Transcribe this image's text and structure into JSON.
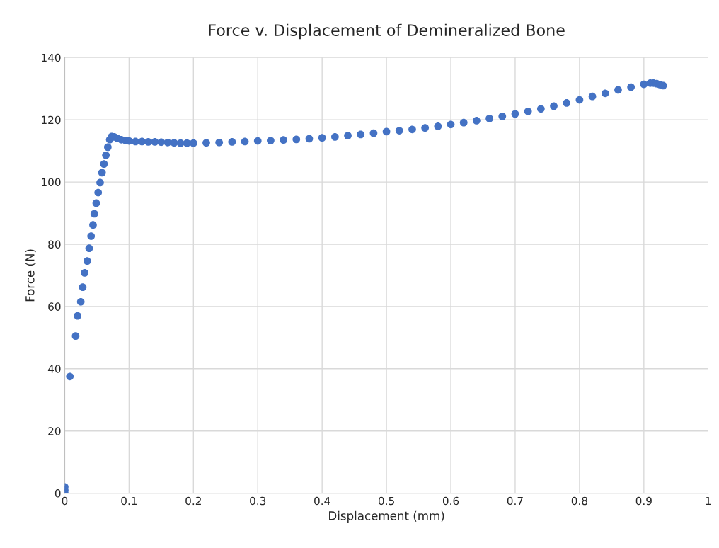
{
  "chart_data": {
    "type": "scatter",
    "title": "Force v. Displacement of Demineralized Bone",
    "xlabel": "Displacement (mm)",
    "ylabel": "Force (N)",
    "xlim": [
      0,
      1
    ],
    "xticks": [
      0,
      0.1,
      0.2,
      0.3,
      0.4,
      0.5,
      0.6,
      0.7,
      0.8,
      0.9,
      1
    ],
    "ylim": [
      0,
      140
    ],
    "yticks": [
      0,
      20,
      40,
      60,
      80,
      100,
      120,
      140
    ],
    "grid": true,
    "marker": "circle",
    "series": [
      {
        "color": "#4472c4",
        "x": [
          0,
          0,
          0,
          0.008,
          0.017,
          0.02,
          0.025,
          0.028,
          0.031,
          0.035,
          0.038,
          0.041,
          0.044,
          0.046,
          0.049,
          0.052,
          0.055,
          0.058,
          0.061,
          0.064,
          0.067,
          0.07,
          0.073,
          0.077,
          0.082,
          0.088,
          0.095,
          0.1,
          0.11,
          0.12,
          0.13,
          0.14,
          0.15,
          0.16,
          0.17,
          0.18,
          0.19,
          0.2,
          0.22,
          0.24,
          0.26,
          0.28,
          0.3,
          0.32,
          0.34,
          0.36,
          0.38,
          0.4,
          0.42,
          0.44,
          0.46,
          0.48,
          0.5,
          0.52,
          0.54,
          0.56,
          0.58,
          0.6,
          0.62,
          0.64,
          0.66,
          0.68,
          0.7,
          0.72,
          0.74,
          0.76,
          0.78,
          0.8,
          0.82,
          0.84,
          0.86,
          0.88,
          0.9,
          0.91,
          0.915,
          0.92,
          0.925,
          0.93
        ],
        "values": [
          0,
          1,
          2,
          37.5,
          50.5,
          57,
          61.5,
          66.2,
          70.8,
          74.6,
          78.7,
          82.6,
          86.2,
          89.8,
          93.2,
          96.6,
          99.8,
          103,
          105.8,
          108.6,
          111.2,
          113.6,
          114.6,
          114.5,
          114,
          113.6,
          113.3,
          113.2,
          113,
          113,
          112.9,
          112.9,
          112.8,
          112.7,
          112.6,
          112.5,
          112.5,
          112.5,
          112.6,
          112.7,
          112.9,
          113,
          113.2,
          113.3,
          113.5,
          113.7,
          113.9,
          114.2,
          114.5,
          114.9,
          115.3,
          115.7,
          116.2,
          116.5,
          116.9,
          117.4,
          117.9,
          118.5,
          119.1,
          119.7,
          120.4,
          121.1,
          121.9,
          122.7,
          123.5,
          124.4,
          125.4,
          126.4,
          127.5,
          128.5,
          129.6,
          130.5,
          131.4,
          131.8,
          131.8,
          131.6,
          131.3,
          131
        ]
      }
    ]
  }
}
